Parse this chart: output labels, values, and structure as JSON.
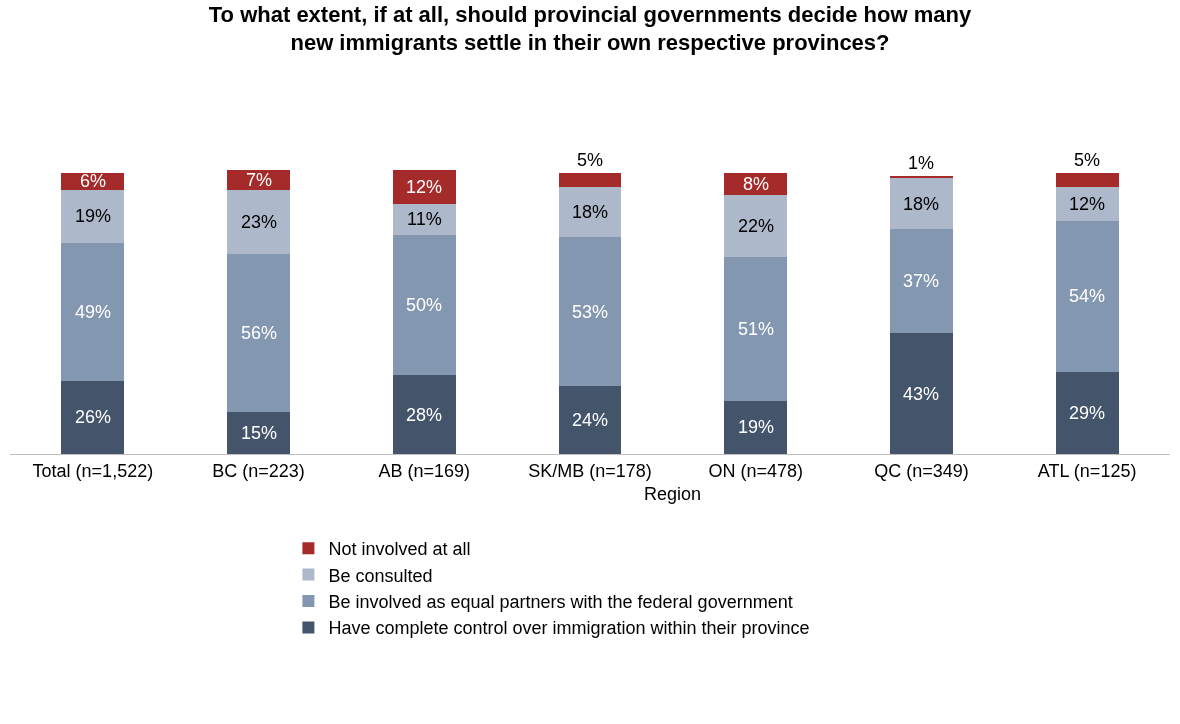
{
  "chart_data": {
    "type": "bar",
    "stacked": true,
    "title": "To what extent, if at all, should provincial governments decide how many new immigrants settle in their own respective provinces?",
    "categories": [
      "Total (n=1,522)",
      "BC (n=223)",
      "AB (n=169)",
      "SK/MB (n=178)",
      "ON (n=478)",
      "QC (n=349)",
      "ATL (n=125)"
    ],
    "series": [
      {
        "name": "Have complete control over immigration within their province",
        "color": "#44546a",
        "values": [
          26,
          15,
          28,
          24,
          19,
          43,
          29
        ],
        "value_labels": [
          "26%",
          "15%",
          "28%",
          "24%",
          "19%",
          "43%",
          "29%"
        ]
      },
      {
        "name": "Be involved as equal partners with the federal government",
        "color": "#8497b0",
        "values": [
          49,
          56,
          50,
          53,
          51,
          37,
          54
        ],
        "value_labels": [
          "49%",
          "56%",
          "50%",
          "53%",
          "51%",
          "37%",
          "54%"
        ]
      },
      {
        "name": "Be consulted",
        "color": "#adb9ca",
        "values": [
          19,
          23,
          11,
          18,
          22,
          18,
          12
        ],
        "value_labels": [
          "19%",
          "23%",
          "11%",
          "18%",
          "22%",
          "18%",
          "12%"
        ]
      },
      {
        "name": "Not involved at all",
        "color": "#a52a2a",
        "values": [
          6,
          7,
          12,
          5,
          8,
          1,
          5
        ],
        "value_labels": [
          "6%",
          "7%",
          "12%",
          "5%",
          "8%",
          "1%",
          "5%"
        ]
      }
    ],
    "annotations": [
      "Region"
    ],
    "legend": "bottom"
  }
}
